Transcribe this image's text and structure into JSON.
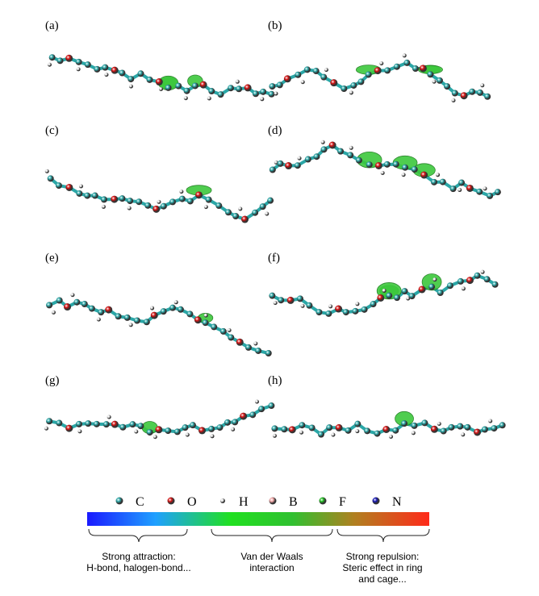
{
  "panels": [
    {
      "label": "(a)"
    },
    {
      "label": "(b)"
    },
    {
      "label": "(c)"
    },
    {
      "label": "(d)"
    },
    {
      "label": "(e)"
    },
    {
      "label": "(f)"
    },
    {
      "label": "(g)"
    },
    {
      "label": "(h)"
    }
  ],
  "legend": {
    "atoms": [
      {
        "symbol": "C",
        "color": "#2aa7a7"
      },
      {
        "symbol": "O",
        "color": "#d41111"
      },
      {
        "symbol": "H",
        "color": "#e6e6e6"
      },
      {
        "symbol": "B",
        "color": "#f2a6a6"
      },
      {
        "symbol": "F",
        "color": "#1fbf1f"
      },
      {
        "symbol": "N",
        "color": "#1414b4"
      }
    ]
  },
  "captions": [
    {
      "lines": [
        "Strong attraction:",
        "H-bond, halogen-bond..."
      ]
    },
    {
      "lines": [
        "Van der Waals",
        "interaction"
      ]
    },
    {
      "lines": [
        "Strong repulsion:",
        "Steric effect in ring",
        "and cage..."
      ]
    }
  ]
}
